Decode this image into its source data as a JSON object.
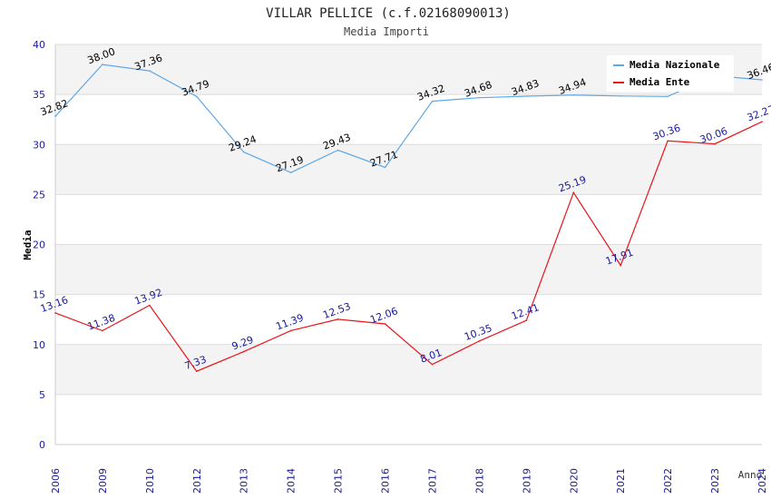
{
  "chart_data": {
    "type": "line",
    "title": "VILLAR PELLICE (c.f.02168090013)",
    "subtitle": "Media Importi",
    "xlabel": "Anno",
    "ylabel": "Media",
    "ylim": [
      0,
      40
    ],
    "yticks": [
      0,
      5,
      10,
      15,
      20,
      25,
      30,
      35,
      40
    ],
    "categories": [
      "2006",
      "2009",
      "2010",
      "2012",
      "2013",
      "2014",
      "2015",
      "2016",
      "2017",
      "2018",
      "2019",
      "2020",
      "2021",
      "2022",
      "2023",
      "2024"
    ],
    "legend_position": "top-right",
    "series": [
      {
        "name": "Media Nazionale",
        "color": "#5fa8e8",
        "label_color": "#000000",
        "values": [
          32.82,
          38.0,
          37.36,
          34.79,
          29.24,
          27.19,
          29.43,
          27.71,
          34.32,
          34.68,
          34.83,
          34.94,
          34.85,
          34.8,
          36.87,
          36.46
        ],
        "labels": [
          "32.82",
          "38.00",
          "37.36",
          "34.79",
          "29.24",
          "27.19",
          "29.43",
          "27.71",
          "34.32",
          "34.68",
          "34.83",
          "34.94",
          "",
          "",
          "",
          "36.46"
        ]
      },
      {
        "name": "Media Ente",
        "color": "#e8141a",
        "label_color": "#1a1a9c",
        "values": [
          13.16,
          11.38,
          13.92,
          7.33,
          9.29,
          11.39,
          12.53,
          12.06,
          8.01,
          10.35,
          12.41,
          25.19,
          17.91,
          30.36,
          30.06,
          32.27
        ],
        "labels": [
          "13.16",
          "11.38",
          "13.92",
          "7.33",
          "9.29",
          "11.39",
          "12.53",
          "12.06",
          "8.01",
          "10.35",
          "12.41",
          "25.19",
          "17.91",
          "30.36",
          "30.06",
          "32.27"
        ]
      }
    ]
  }
}
